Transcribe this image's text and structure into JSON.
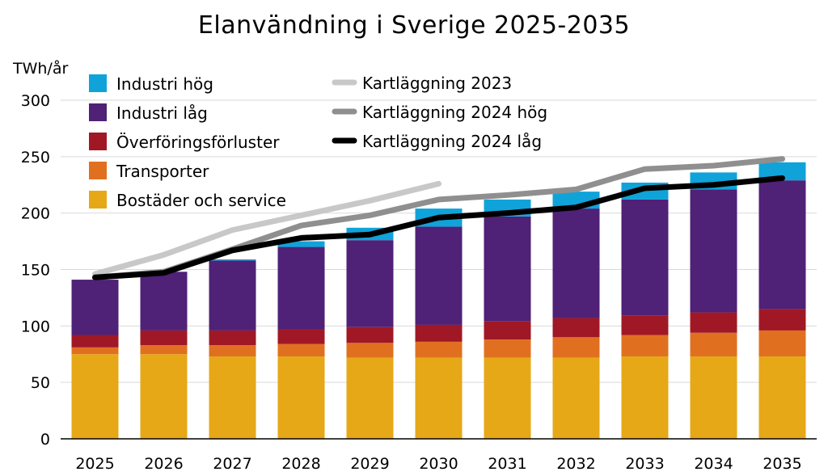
{
  "chart_data": {
    "type": "bar",
    "title": "Elanvändning i Sverige 2025-2035",
    "ylabel": "TWh/år",
    "xlabel": "",
    "ylim": [
      0,
      300
    ],
    "yticks": [
      0,
      50,
      100,
      150,
      200,
      250,
      300
    ],
    "categories": [
      "2025",
      "2026",
      "2027",
      "2028",
      "2029",
      "2030",
      "2031",
      "2032",
      "2033",
      "2034",
      "2035"
    ],
    "stacked": true,
    "grid": "horizontal",
    "legend_placement": "top-left",
    "series": [
      {
        "name": "Bostäder och service",
        "color": "#E6A817",
        "values": [
          75,
          75,
          73,
          73,
          72,
          72,
          72,
          72,
          73,
          73,
          73
        ]
      },
      {
        "name": "Transporter",
        "color": "#E07020",
        "values": [
          6,
          8,
          10,
          11,
          13,
          14,
          16,
          18,
          19,
          21,
          23
        ]
      },
      {
        "name": "Överföringsförluster",
        "color": "#A01825",
        "values": [
          11,
          13,
          13,
          13,
          14,
          15,
          16,
          17,
          17,
          18,
          19
        ]
      },
      {
        "name": "Industri låg",
        "color": "#4F2177",
        "values": [
          49,
          52,
          62,
          73,
          77,
          87,
          93,
          97,
          103,
          109,
          114
        ]
      },
      {
        "name": "Industri hög",
        "color": "#0FA3DA",
        "values": [
          0,
          0,
          1,
          5,
          11,
          16,
          15,
          15,
          15,
          15,
          16
        ]
      }
    ],
    "lines": [
      {
        "name": "Kartläggning 2023",
        "color": "#C8C8C8",
        "width": 7,
        "x": [
          "2025",
          "2026",
          "2027",
          "2028",
          "2029",
          "2030"
        ],
        "values": [
          146,
          163,
          185,
          198,
          211,
          226
        ]
      },
      {
        "name": "Kartläggning 2024 hög",
        "color": "#8F8F8F",
        "width": 7,
        "x": [
          "2025",
          "2026",
          "2027",
          "2028",
          "2029",
          "2030",
          "2031",
          "2032",
          "2033",
          "2034",
          "2035"
        ],
        "values": [
          143,
          148,
          168,
          189,
          198,
          212,
          216,
          221,
          239,
          242,
          248
        ]
      },
      {
        "name": "Kartläggning 2024 låg",
        "color": "#000000",
        "width": 7,
        "x": [
          "2025",
          "2026",
          "2027",
          "2028",
          "2029",
          "2030",
          "2031",
          "2032",
          "2033",
          "2034",
          "2035"
        ],
        "values": [
          143,
          147,
          167,
          178,
          181,
          196,
          200,
          205,
          222,
          225,
          231
        ]
      }
    ],
    "legend_left": [
      "Industri hög",
      "Industri låg",
      "Överföringsförluster",
      "Transporter",
      "Bostäder och service"
    ],
    "legend_right": [
      "Kartläggning 2023",
      "Kartläggning 2024 hög",
      "Kartläggning 2024 låg"
    ]
  }
}
